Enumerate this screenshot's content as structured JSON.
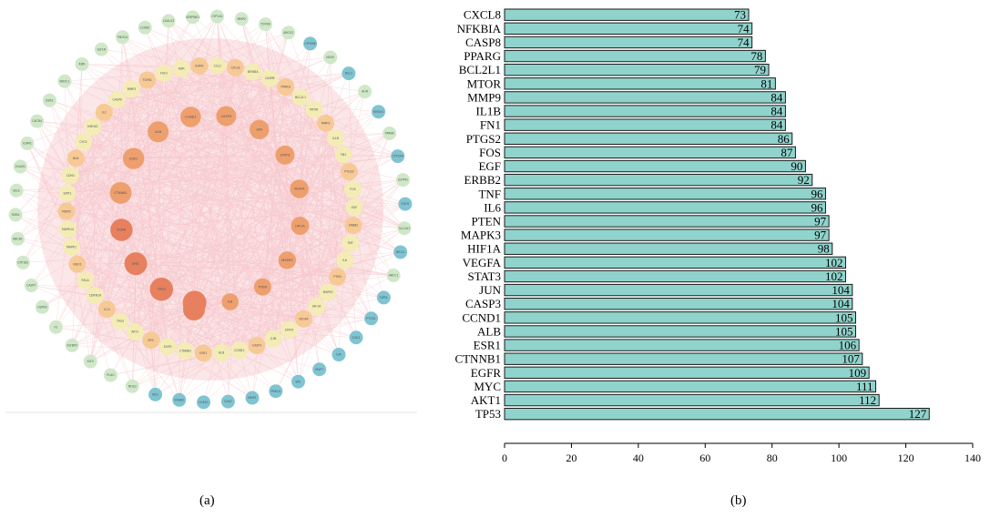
{
  "panels": {
    "a_label": "(a)",
    "b_label": "(b)"
  },
  "colors": {
    "bar_fill": "#8fd3cc",
    "bar_stroke": "#1a1a1a",
    "edge": "#f2a8b0",
    "node_blue": "#7fc4d2",
    "node_green": "#cfe8c8",
    "node_yellow": "#f3ecb5",
    "node_peach": "#f7c995",
    "node_orange": "#ee9f6e",
    "node_deep": "#e7805f",
    "disk_background": "#f8d2d6"
  },
  "network": {
    "description_layers": [
      "outer-ring",
      "middle-ring",
      "inner-ring",
      "core"
    ],
    "outer_ring": [
      "CYP1A2",
      "MMP2",
      "TOP2B",
      "ABCG2",
      "CYP2B6",
      "NOX5",
      "BCL2",
      "AHR",
      "HMOX1",
      "PPARA",
      "CYP3A4",
      "GSTM1",
      "EGFR",
      "SLC2A1",
      "NR1I2",
      "ABCC1",
      "DPP4",
      "PTGS1",
      "SOD1",
      "CAT",
      "MAPT",
      "SRC",
      "PRKCA",
      "MMP1",
      "CDK2",
      "CHEK1",
      "ERBB3",
      "IRS1",
      "NOS3",
      "PLAU",
      "IGF2",
      "IGFBP3",
      "F2",
      "HSP90",
      "CASP7",
      "CYP1B1",
      "ABCB1",
      "RXRA",
      "SELE",
      "VCAM1",
      "ICAM1",
      "CXCR4",
      "ESR2",
      "NR3C1",
      "KDR",
      "IGF1R",
      "PIK3CA",
      "CCNB1",
      "LGALS3",
      "SERPINE1"
    ],
    "middle_ring": [
      "CXCL8",
      "NFKBIA",
      "CASP8",
      "PPARG",
      "BCL2L1",
      "MTOR",
      "MMP9",
      "IL1B",
      "FN1",
      "PTGS2",
      "FOS",
      "EGF",
      "ERBB2",
      "TNF",
      "IL6",
      "PTEN",
      "MAPK3",
      "HIF1A",
      "VEGFA",
      "STAT3",
      "JUN",
      "CASP3",
      "CCND1",
      "ALB",
      "ESR1",
      "CTNNB1",
      "EGFR",
      "MYC",
      "AKT1",
      "TP53",
      "IL10",
      "CDKN1A",
      "RELA",
      "NQO1",
      "MAPK1",
      "MAPK14",
      "MDM2",
      "SIRT1",
      "CDH1",
      "BAX",
      "CYCS",
      "HMOX1",
      "IL2",
      "CASP9",
      "MMP3",
      "TGFB1",
      "FGF2",
      "KDR",
      "ICAM1",
      "CCL2"
    ],
    "inner_ring": [
      "AKT1",
      "TP53",
      "MYC",
      "EGFR",
      "CTNNB1",
      "ESR1",
      "ALB",
      "CCND1",
      "CASP3",
      "JUN",
      "STAT3",
      "VEGFA",
      "HIF1A",
      "MAPK3",
      "PTEN",
      "IL6"
    ],
    "core": [
      "TP53"
    ]
  },
  "chart_data": {
    "type": "bar",
    "orientation": "horizontal",
    "categories": [
      "CXCL8",
      "NFKBIA",
      "CASP8",
      "PPARG",
      "BCL2L1",
      "MTOR",
      "MMP9",
      "IL1B",
      "FN1",
      "PTGS2",
      "FOS",
      "EGF",
      "ERBB2",
      "TNF",
      "IL6",
      "PTEN",
      "MAPK3",
      "HIF1A",
      "VEGFA",
      "STAT3",
      "JUN",
      "CASP3",
      "CCND1",
      "ALB",
      "ESR1",
      "CTNNB1",
      "EGFR",
      "MYC",
      "AKT1",
      "TP53"
    ],
    "values": [
      73,
      74,
      74,
      78,
      79,
      81,
      84,
      84,
      84,
      86,
      87,
      90,
      92,
      96,
      96,
      97,
      97,
      98,
      102,
      102,
      104,
      104,
      105,
      105,
      106,
      107,
      109,
      111,
      112,
      127
    ],
    "xlim": [
      0,
      140
    ],
    "xticks": [
      0,
      20,
      40,
      60,
      80,
      100,
      120,
      140
    ],
    "title": "",
    "xlabel": "",
    "ylabel": "",
    "grid": false,
    "value_labels": true
  }
}
